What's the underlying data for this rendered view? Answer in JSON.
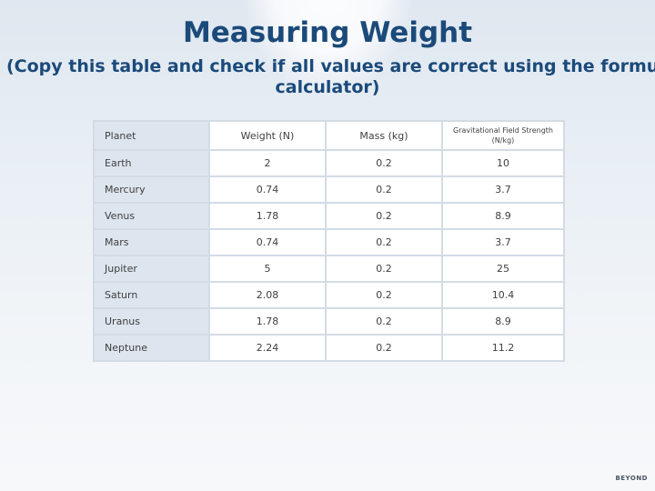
{
  "slide": {
    "title": "Measuring Weight",
    "subtitle_line1": "(Copy this table and check if all values are correct using the formula and",
    "subtitle_line2": "calculator)"
  },
  "table": {
    "headers": [
      "Planet",
      "Weight (N)",
      "Mass (kg)",
      "Gravitational Field Strength (N/kg)"
    ],
    "rows": [
      [
        "Earth",
        "2",
        "0.2",
        "10"
      ],
      [
        "Mercury",
        "0.74",
        "0.2",
        "3.7"
      ],
      [
        "Venus",
        "1.78",
        "0.2",
        "8.9"
      ],
      [
        "Mars",
        "0.74",
        "0.2",
        "3.7"
      ],
      [
        "Jupiter",
        "5",
        "0.2",
        "25"
      ],
      [
        "Saturn",
        "2.08",
        "0.2",
        "10.4"
      ],
      [
        "Uranus",
        "1.78",
        "0.2",
        "8.9"
      ],
      [
        "Neptune",
        "2.24",
        "0.2",
        "11.2"
      ]
    ]
  },
  "footer": {
    "logo_text": "BEYOND"
  },
  "colors": {
    "title": "#1b4a7a",
    "header_cell_bg": "#dde5ee",
    "border": "#d3dbe5"
  }
}
